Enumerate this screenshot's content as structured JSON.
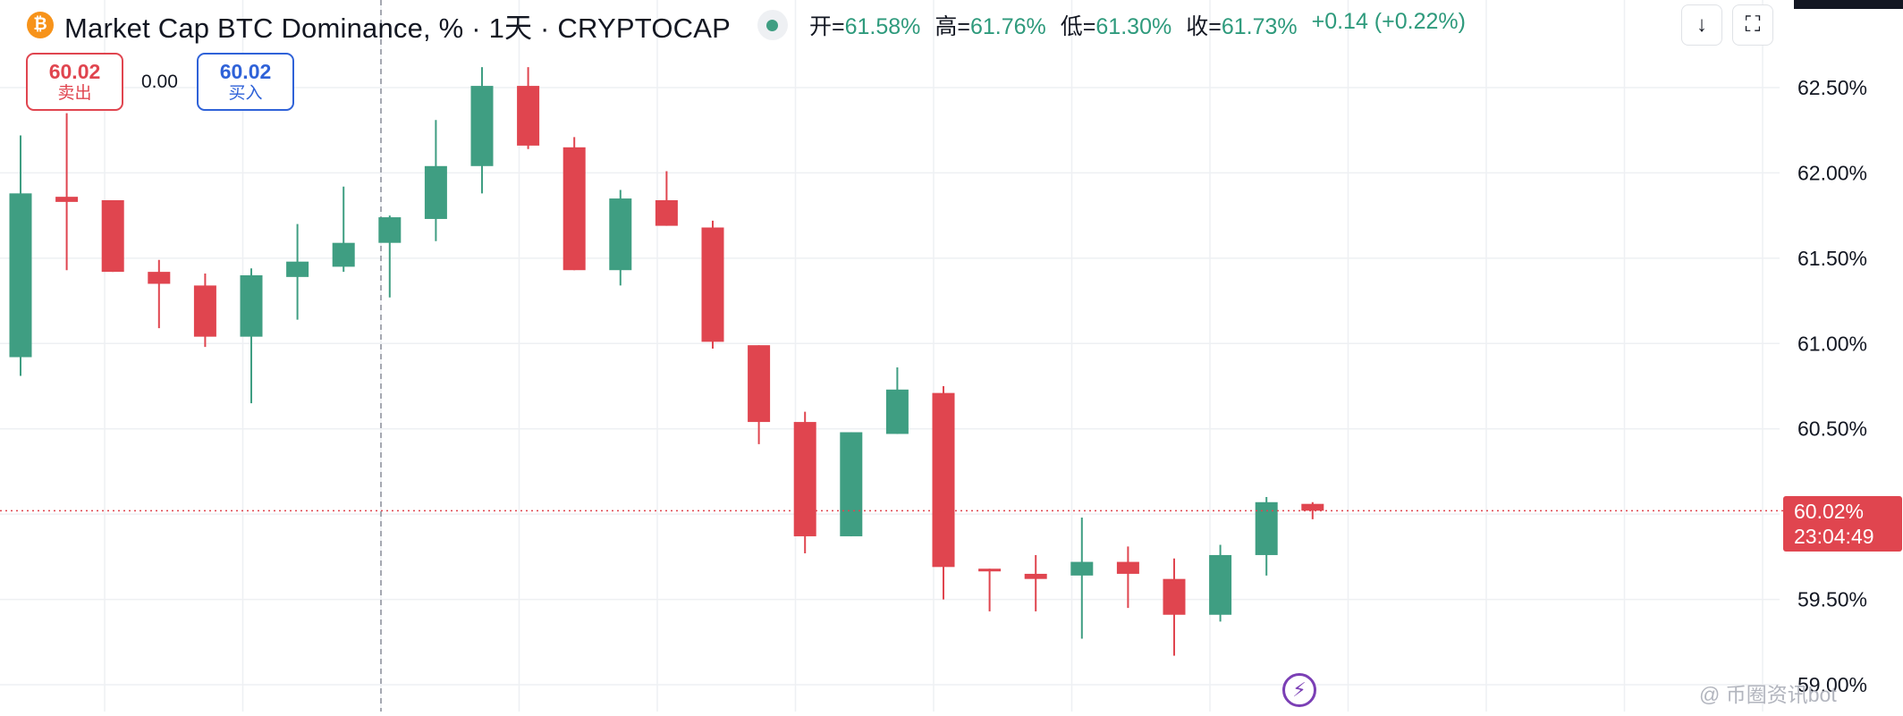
{
  "header": {
    "logo_symbol": "₿",
    "title": "Market Cap BTC Dominance, % · 1天 · CRYPTOCAP",
    "ohlc": [
      {
        "key": "开=",
        "value": "61.58%"
      },
      {
        "key": "高=",
        "value": "61.76%"
      },
      {
        "key": "低=",
        "value": "61.30%"
      },
      {
        "key": "收=",
        "value": "61.73%"
      }
    ],
    "change": "+0.14 (+0.22%)"
  },
  "toolbar": {
    "down_icon_glyph": "↓",
    "fullscreen_icon_glyph": "⛶"
  },
  "trade": {
    "sell_price": "60.02",
    "sell_label": "卖出",
    "spread": "0.00",
    "buy_price": "60.02",
    "buy_label": "买入"
  },
  "price_tag": {
    "price": "60.02%",
    "countdown": "23:04:49"
  },
  "watermark": "@ 币圈资讯bot",
  "colors": {
    "up": "#3f9e82",
    "down": "#e0454f",
    "grid": "#eef0f3",
    "accent_buy": "#2f62d8"
  },
  "chart_data": {
    "type": "candlestick",
    "y_unit": "%",
    "ylim": [
      58.75,
      62.85
    ],
    "y_ticks": [
      "62.50%",
      "62.00%",
      "61.50%",
      "61.00%",
      "60.50%",
      "59.50%",
      "59.00%"
    ],
    "y_tick_values": [
      62.5,
      62.0,
      61.5,
      61.0,
      60.5,
      59.5,
      59.0
    ],
    "last_price": 60.02,
    "candles": [
      {
        "o": 60.92,
        "h": 62.22,
        "l": 60.81,
        "c": 61.88
      },
      {
        "o": 61.86,
        "h": 62.35,
        "l": 61.43,
        "c": 61.83
      },
      {
        "o": 61.84,
        "h": 61.84,
        "l": 61.42,
        "c": 61.42
      },
      {
        "o": 61.42,
        "h": 61.49,
        "l": 61.09,
        "c": 61.35
      },
      {
        "o": 61.34,
        "h": 61.41,
        "l": 60.98,
        "c": 61.04
      },
      {
        "o": 61.04,
        "h": 61.44,
        "l": 60.65,
        "c": 61.4
      },
      {
        "o": 61.39,
        "h": 61.7,
        "l": 61.14,
        "c": 61.48
      },
      {
        "o": 61.45,
        "h": 61.92,
        "l": 61.42,
        "c": 61.59
      },
      {
        "o": 61.59,
        "h": 61.75,
        "l": 61.27,
        "c": 61.74
      },
      {
        "o": 61.73,
        "h": 62.31,
        "l": 61.6,
        "c": 62.04
      },
      {
        "o": 62.04,
        "h": 62.62,
        "l": 61.88,
        "c": 62.51
      },
      {
        "o": 62.51,
        "h": 62.62,
        "l": 62.14,
        "c": 62.16
      },
      {
        "o": 62.15,
        "h": 62.21,
        "l": 61.43,
        "c": 61.43
      },
      {
        "o": 61.43,
        "h": 61.9,
        "l": 61.34,
        "c": 61.85
      },
      {
        "o": 61.84,
        "h": 62.01,
        "l": 61.69,
        "c": 61.69
      },
      {
        "o": 61.68,
        "h": 61.72,
        "l": 60.97,
        "c": 61.01
      },
      {
        "o": 60.99,
        "h": 60.99,
        "l": 60.41,
        "c": 60.54
      },
      {
        "o": 60.54,
        "h": 60.6,
        "l": 59.77,
        "c": 59.87
      },
      {
        "o": 59.87,
        "h": 60.48,
        "l": 59.87,
        "c": 60.48
      },
      {
        "o": 60.47,
        "h": 60.86,
        "l": 60.47,
        "c": 60.73
      },
      {
        "o": 60.71,
        "h": 60.75,
        "l": 59.5,
        "c": 59.69
      },
      {
        "o": 59.68,
        "h": 59.68,
        "l": 59.43,
        "c": 59.67
      },
      {
        "o": 59.65,
        "h": 59.76,
        "l": 59.43,
        "c": 59.62
      },
      {
        "o": 59.64,
        "h": 59.98,
        "l": 59.27,
        "c": 59.72
      },
      {
        "o": 59.72,
        "h": 59.81,
        "l": 59.45,
        "c": 59.65
      },
      {
        "o": 59.62,
        "h": 59.74,
        "l": 59.17,
        "c": 59.41
      },
      {
        "o": 59.41,
        "h": 59.82,
        "l": 59.37,
        "c": 59.76
      },
      {
        "o": 59.76,
        "h": 60.1,
        "l": 59.64,
        "c": 60.07
      },
      {
        "o": 60.06,
        "h": 60.07,
        "l": 59.97,
        "c": 60.02
      }
    ]
  }
}
